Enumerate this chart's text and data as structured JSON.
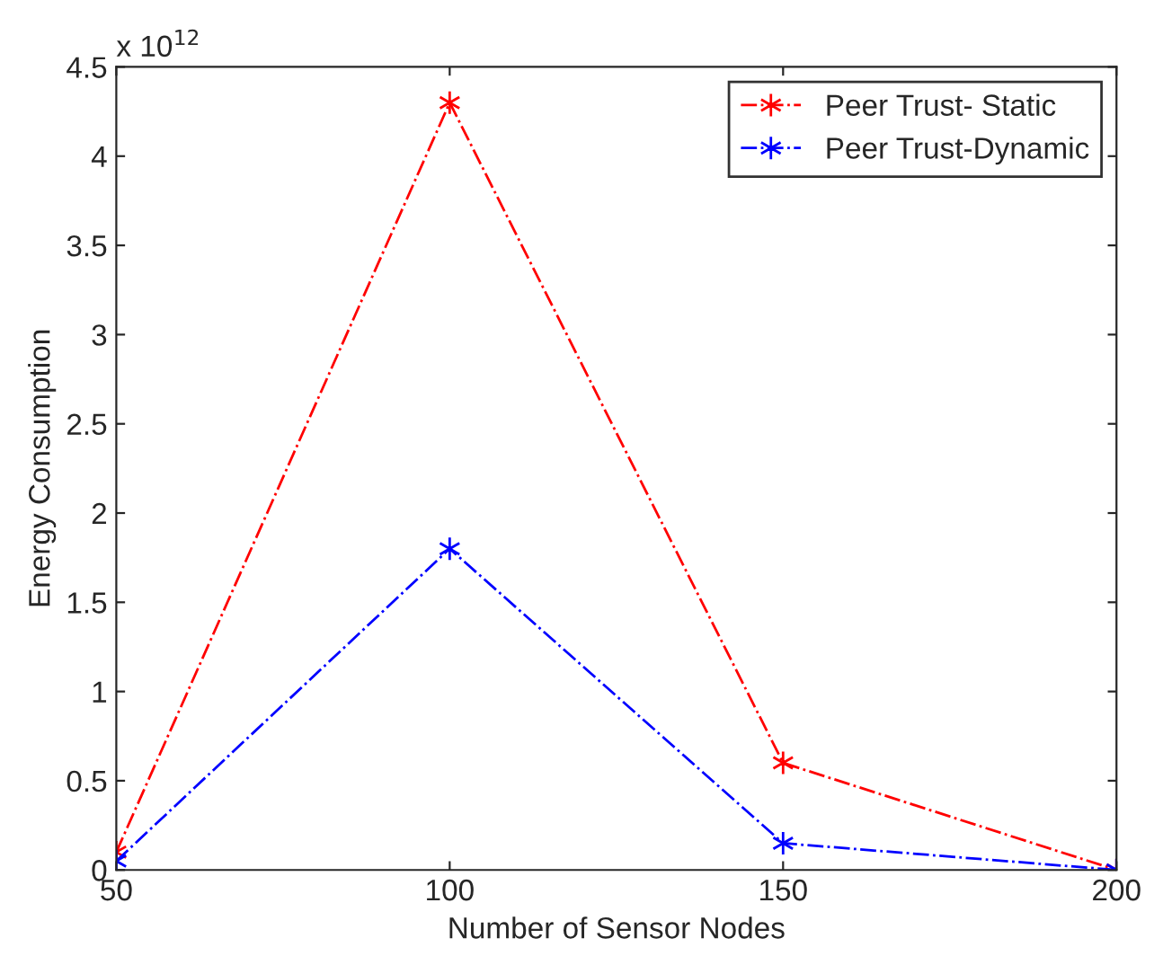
{
  "chart_data": {
    "type": "line",
    "xlabel": "Number of Sensor Nodes",
    "ylabel": "Energy Consumption",
    "annotations": [
      "x 10$^{12}$"
    ],
    "x": [
      50,
      100,
      150,
      200
    ],
    "series": [
      {
        "name": "Peer Trust- Static",
        "color": "#ff0000",
        "values": [
          0.1,
          4.3,
          0.6,
          0.0
        ]
      },
      {
        "name": "Peer Trust-Dynamic",
        "color": "#0000ff",
        "values": [
          0.05,
          1.8,
          0.15,
          0.0
        ]
      }
    ],
    "xlim": [
      50,
      200
    ],
    "xticks": [
      50,
      100,
      150,
      200
    ],
    "ylim": [
      0,
      4.5
    ],
    "yticks": [
      0,
      0.5,
      1,
      1.5,
      2,
      2.5,
      3,
      3.5,
      4,
      4.5
    ],
    "grid": false,
    "legend": "top right",
    "marker": "cross",
    "line_style": "dashdot"
  }
}
